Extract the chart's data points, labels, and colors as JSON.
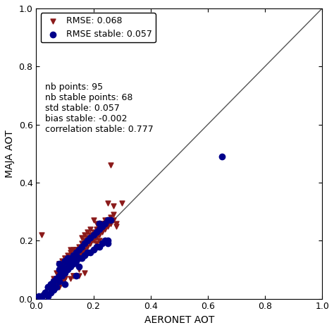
{
  "xlabel": "AERONET AOT",
  "ylabel": "MAJA AOT",
  "xlim": [
    0.0,
    1.0
  ],
  "ylim": [
    0.0,
    1.0
  ],
  "xticks": [
    0.0,
    0.2,
    0.4,
    0.6,
    0.8,
    1.0
  ],
  "yticks": [
    0.0,
    0.2,
    0.4,
    0.6,
    0.8,
    1.0
  ],
  "rmse_all": 0.068,
  "rmse_stable": 0.057,
  "nb_points": 95,
  "nb_stable_points": 68,
  "std_stable": 0.057,
  "bias_stable": -0.002,
  "correlation_stable": 0.777,
  "color_all": "#8B1A1A",
  "color_stable": "#00008B",
  "marker_all": "v",
  "marker_stable": "o",
  "markersize_all": 5,
  "markersize_stable": 6,
  "diag_color": "#555555",
  "red_x": [
    0.02,
    0.06,
    0.07,
    0.08,
    0.08,
    0.09,
    0.1,
    0.1,
    0.11,
    0.12,
    0.13,
    0.14,
    0.14,
    0.15,
    0.15,
    0.16,
    0.17,
    0.18,
    0.19,
    0.2,
    0.2,
    0.21,
    0.22,
    0.23,
    0.24,
    0.25,
    0.26,
    0.27,
    0.06,
    0.07,
    0.09,
    0.1,
    0.12,
    0.13,
    0.15,
    0.17,
    0.19,
    0.21,
    0.3,
    0.09,
    0.11,
    0.14,
    0.16,
    0.18,
    0.22,
    0.24,
    0.25,
    0.11,
    0.13,
    0.16,
    0.19,
    0.22,
    0.28,
    0.28,
    0.26,
    0.08,
    0.09,
    0.1,
    0.11,
    0.12,
    0.13,
    0.15,
    0.16,
    0.17,
    0.18,
    0.19,
    0.2,
    0.21,
    0.23,
    0.24,
    0.25,
    0.26,
    0.27,
    0.06,
    0.07,
    0.08,
    0.09,
    0.1,
    0.11,
    0.12,
    0.13,
    0.14,
    0.15,
    0.16,
    0.17,
    0.18,
    0.19,
    0.2,
    0.21,
    0.22,
    0.23,
    0.24,
    0.25,
    0.26,
    0.27
  ],
  "red_y": [
    0.22,
    0.07,
    0.09,
    0.12,
    0.04,
    0.09,
    0.14,
    0.07,
    0.11,
    0.17,
    0.08,
    0.13,
    0.17,
    0.1,
    0.16,
    0.16,
    0.22,
    0.2,
    0.24,
    0.22,
    0.27,
    0.26,
    0.24,
    0.26,
    0.27,
    0.26,
    0.26,
    0.27,
    0.05,
    0.06,
    0.06,
    0.07,
    0.07,
    0.08,
    0.08,
    0.09,
    0.19,
    0.19,
    0.33,
    0.09,
    0.11,
    0.17,
    0.21,
    0.23,
    0.2,
    0.26,
    0.33,
    0.1,
    0.13,
    0.16,
    0.19,
    0.26,
    0.25,
    0.26,
    0.46,
    0.12,
    0.13,
    0.14,
    0.15,
    0.16,
    0.17,
    0.18,
    0.19,
    0.2,
    0.21,
    0.22,
    0.23,
    0.24,
    0.25,
    0.26,
    0.27,
    0.28,
    0.29,
    0.06,
    0.07,
    0.08,
    0.09,
    0.1,
    0.11,
    0.12,
    0.13,
    0.14,
    0.15,
    0.16,
    0.17,
    0.18,
    0.19,
    0.2,
    0.21,
    0.22,
    0.23,
    0.24,
    0.25,
    0.26,
    0.32
  ],
  "blue_x": [
    0.02,
    0.03,
    0.04,
    0.04,
    0.05,
    0.05,
    0.06,
    0.06,
    0.07,
    0.07,
    0.08,
    0.08,
    0.09,
    0.09,
    0.1,
    0.1,
    0.1,
    0.11,
    0.11,
    0.12,
    0.12,
    0.13,
    0.13,
    0.14,
    0.14,
    0.14,
    0.15,
    0.15,
    0.16,
    0.16,
    0.17,
    0.17,
    0.18,
    0.18,
    0.19,
    0.19,
    0.2,
    0.2,
    0.21,
    0.21,
    0.22,
    0.22,
    0.23,
    0.23,
    0.24,
    0.24,
    0.25,
    0.25,
    0.25,
    0.26,
    0.01,
    0.02,
    0.03,
    0.04,
    0.05,
    0.06,
    0.07,
    0.08,
    0.08,
    0.09,
    0.1,
    0.11,
    0.12,
    0.13,
    0.14,
    0.15,
    0.22,
    0.65
  ],
  "blue_y": [
    0.0,
    0.02,
    0.04,
    0.01,
    0.05,
    0.02,
    0.06,
    0.03,
    0.07,
    0.04,
    0.12,
    0.06,
    0.11,
    0.08,
    0.13,
    0.09,
    0.05,
    0.14,
    0.1,
    0.14,
    0.11,
    0.15,
    0.12,
    0.16,
    0.13,
    0.08,
    0.17,
    0.14,
    0.18,
    0.14,
    0.19,
    0.15,
    0.2,
    0.16,
    0.21,
    0.16,
    0.22,
    0.17,
    0.23,
    0.18,
    0.24,
    0.18,
    0.25,
    0.19,
    0.26,
    0.2,
    0.27,
    0.2,
    0.19,
    0.27,
    0.01,
    0.01,
    0.02,
    0.04,
    0.05,
    0.06,
    0.07,
    0.1,
    0.08,
    0.1,
    0.1,
    0.12,
    0.13,
    0.14,
    0.15,
    0.11,
    0.26,
    0.49
  ]
}
